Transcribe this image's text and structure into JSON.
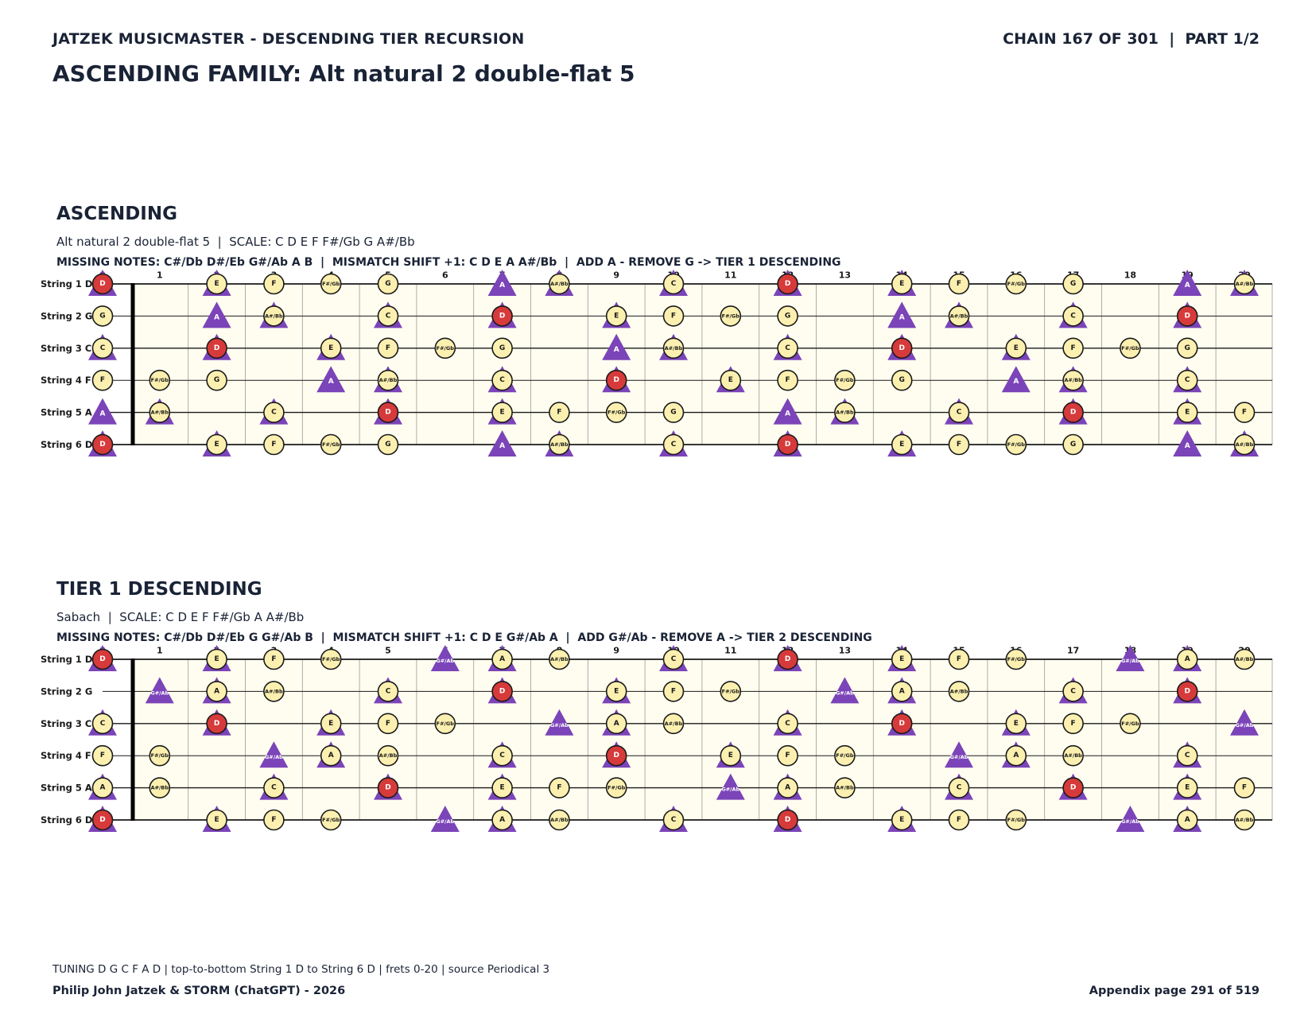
{
  "header": {
    "left": "JATZEK MUSICMASTER - DESCENDING TIER RECURSION",
    "right": "CHAIN 167 OF 301  |  PART 1/2",
    "title": "ASCENDING FAMILY: Alt natural 2 double-flat 5"
  },
  "colors": {
    "board_bg": "#fffdf0",
    "note_fill": "#fcf0b0",
    "root_fill": "#d63a3a",
    "added_fill": "#7b44b8",
    "line": "#1a1a1a"
  },
  "frets": [
    "0",
    "1",
    "2",
    "3",
    "4",
    "5",
    "6",
    "7",
    "8",
    "9",
    "10",
    "11",
    "12",
    "13",
    "14",
    "15",
    "16",
    "17",
    "18",
    "19",
    "20"
  ],
  "strings": [
    {
      "label": "String 1 D",
      "open": "D"
    },
    {
      "label": "String 2 G",
      "open": "G"
    },
    {
      "label": "String 3 C",
      "open": "C"
    },
    {
      "label": "String 4 F",
      "open": "F"
    },
    {
      "label": "String 5 A",
      "open": "A"
    },
    {
      "label": "String 6 D",
      "open": "D"
    }
  ],
  "root_note": "D",
  "sections": [
    {
      "title": "ASCENDING",
      "subtitle": "Alt natural 2 double-flat 5  |  SCALE: C D E F F#/Gb G A#/Bb",
      "missing": "MISSING NOTES: C#/Db D#/Eb G#/Ab A B  |  MISMATCH SHIFT +1: C D E A A#/Bb  |  ADD A - REMOVE G -> TIER 1 DESCENDING",
      "scale": [
        "C",
        "D",
        "E",
        "F",
        "F#/Gb",
        "G",
        "A#/Bb"
      ],
      "shift": [
        "C",
        "D",
        "E",
        "A",
        "A#/Bb"
      ]
    },
    {
      "title": "TIER 1 DESCENDING",
      "subtitle": "Sabach  |  SCALE: C D E F F#/Gb A A#/Bb",
      "missing": "MISSING NOTES: C#/Db D#/Eb G G#/Ab B  |  MISMATCH SHIFT +1: C D E G#/Ab A  |  ADD G#/Ab - REMOVE A -> TIER 2 DESCENDING",
      "scale": [
        "C",
        "D",
        "E",
        "F",
        "F#/Gb",
        "A",
        "A#/Bb"
      ],
      "shift": [
        "C",
        "D",
        "E",
        "G#/Ab",
        "A"
      ]
    }
  ],
  "footer": {
    "tuning": "TUNING D G C F A D | top-to-bottom String 1 D to String 6 D | frets 0-20 | source Periodical 3",
    "author": "Philip John Jatzek & STORM (ChatGPT) - 2026",
    "page": "Appendix page 291 of 519"
  }
}
